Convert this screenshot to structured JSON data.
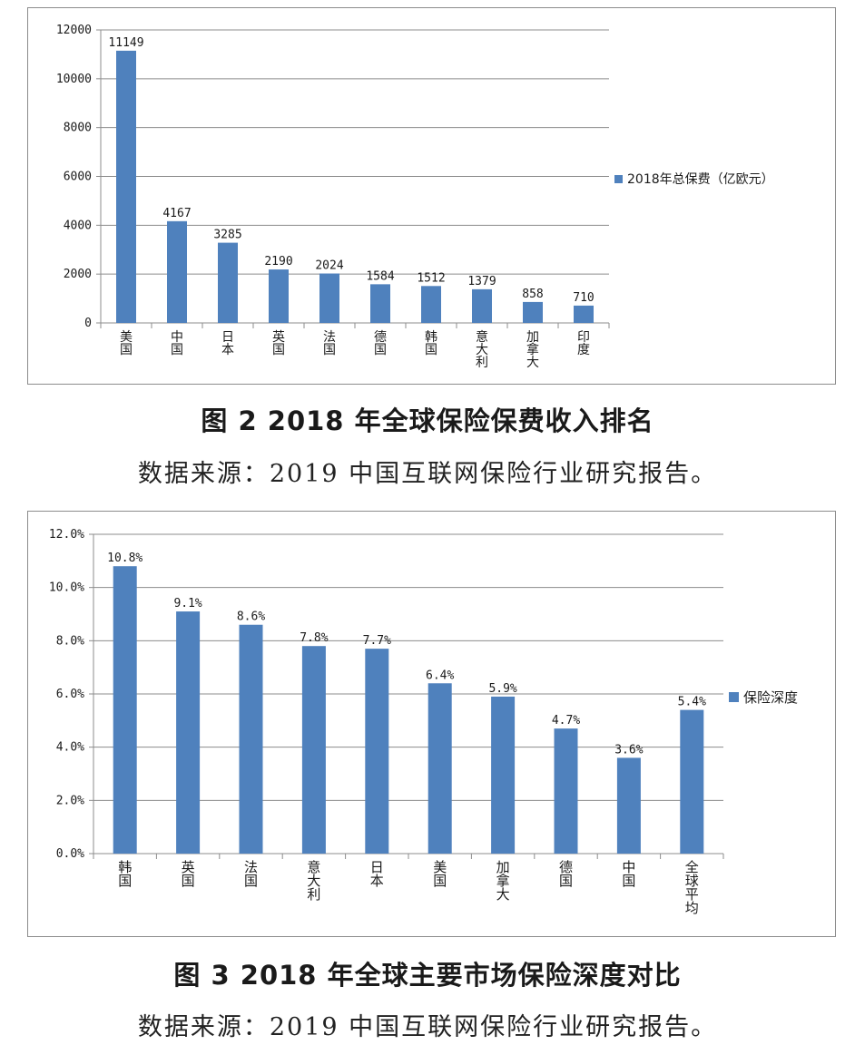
{
  "figures": [
    {
      "caption": "图 2   2018 年全球保险保费收入排名",
      "source": "数据来源：2019 中国互联网保险行业研究报告。"
    },
    {
      "caption": "图 3   2018 年全球主要市场保险深度对比",
      "source": "数据来源：2019 中国互联网保险行业研究报告。"
    }
  ],
  "colors": {
    "bar": "#4f81bd",
    "grid": "#8c8c8c",
    "frame": "#8c8c8c"
  },
  "chart_data": [
    {
      "type": "bar",
      "title": "",
      "xlabel": "",
      "ylabel": "",
      "categories": [
        "美国",
        "中国",
        "日本",
        "英国",
        "法国",
        "德国",
        "韩国",
        "意大利",
        "加拿大",
        "印度"
      ],
      "series": [
        {
          "name": "2018年总保费（亿欧元）",
          "values": [
            11149,
            4167,
            3285,
            2190,
            2024,
            1584,
            1512,
            1379,
            858,
            710
          ]
        }
      ],
      "data_labels": [
        "11149",
        "4167",
        "3285",
        "2190",
        "2024",
        "1584",
        "1512",
        "1379",
        "858",
        "710"
      ],
      "y_ticks": [
        "0",
        "2000",
        "4000",
        "6000",
        "8000",
        "10000",
        "12000"
      ],
      "ylim": [
        0,
        12000
      ],
      "grid": true,
      "legend_position": "right"
    },
    {
      "type": "bar",
      "title": "",
      "xlabel": "",
      "ylabel": "",
      "categories": [
        "韩国",
        "英国",
        "法国",
        "意大利",
        "日本",
        "美国",
        "加拿大",
        "德国",
        "中国",
        "全球平均"
      ],
      "series": [
        {
          "name": "保险深度",
          "values": [
            10.8,
            9.1,
            8.6,
            7.8,
            7.7,
            6.4,
            5.9,
            4.7,
            3.6,
            5.4
          ]
        }
      ],
      "data_labels": [
        "10.8%",
        "9.1%",
        "8.6%",
        "7.8%",
        "7.7%",
        "6.4%",
        "5.9%",
        "4.7%",
        "3.6%",
        "5.4%"
      ],
      "y_ticks": [
        "0.0%",
        "2.0%",
        "4.0%",
        "6.0%",
        "8.0%",
        "10.0%",
        "12.0%"
      ],
      "ylim": [
        0,
        12
      ],
      "grid": true,
      "legend_position": "right"
    }
  ]
}
